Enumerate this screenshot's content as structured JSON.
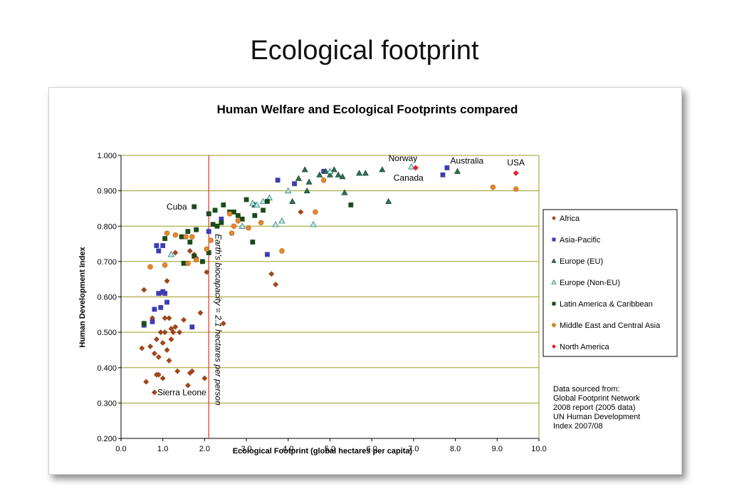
{
  "page": {
    "title": "Ecological footprint"
  },
  "chart_data": {
    "type": "scatter",
    "title": "Human Welfare and Ecological Footprints compared",
    "xlabel": "Ecological Footprint (global hectares per capita)",
    "ylabel": "Human Development Index",
    "xlim": [
      0,
      10
    ],
    "ylim": [
      0.2,
      1.0
    ],
    "xticks": [
      "0.0",
      "1.0",
      "2.0",
      "3.0",
      "4.0",
      "5.0",
      "6.0",
      "7.0",
      "8.0",
      "9.0",
      "10.0"
    ],
    "yticks": [
      "0.200",
      "0.300",
      "0.400",
      "0.500",
      "0.600",
      "0.700",
      "0.800",
      "0.900",
      "1.000"
    ],
    "grid": true,
    "legend_position": "right",
    "reference_line": {
      "x": 2.1,
      "label": "Earth's biocapacity = 2.1 hectares per person",
      "color": "#e8412e"
    },
    "series": [
      {
        "name": "Africa",
        "marker": "diamond",
        "color": "#a0461c",
        "points": [
          [
            0.5,
            0.455
          ],
          [
            0.6,
            0.36
          ],
          [
            0.7,
            0.46
          ],
          [
            0.75,
            0.54
          ],
          [
            0.8,
            0.44
          ],
          [
            0.8,
            0.33
          ],
          [
            0.85,
            0.48
          ],
          [
            0.85,
            0.38
          ],
          [
            0.9,
            0.43
          ],
          [
            0.9,
            0.38
          ],
          [
            0.95,
            0.5
          ],
          [
            1.0,
            0.37
          ],
          [
            1.0,
            0.47
          ],
          [
            1.05,
            0.54
          ],
          [
            1.05,
            0.5
          ],
          [
            1.1,
            0.45
          ],
          [
            1.1,
            0.645
          ],
          [
            1.15,
            0.42
          ],
          [
            1.2,
            0.51
          ],
          [
            1.25,
            0.5
          ],
          [
            1.3,
            0.515
          ],
          [
            1.3,
            0.725
          ],
          [
            1.35,
            0.39
          ],
          [
            1.4,
            0.5
          ],
          [
            1.5,
            0.535
          ],
          [
            1.6,
            0.35
          ],
          [
            1.65,
            0.385
          ],
          [
            1.7,
            0.39
          ],
          [
            1.75,
            0.72
          ],
          [
            1.8,
            0.71
          ],
          [
            1.9,
            0.555
          ],
          [
            2.0,
            0.37
          ],
          [
            2.05,
            0.67
          ],
          [
            2.45,
            0.525
          ],
          [
            0.55,
            0.62
          ],
          [
            0.95,
            0.61
          ],
          [
            1.65,
            0.73
          ],
          [
            3.6,
            0.665
          ],
          [
            3.7,
            0.635
          ],
          [
            4.3,
            0.84
          ],
          [
            1.15,
            0.54
          ],
          [
            1.2,
            0.48
          ]
        ]
      },
      {
        "name": "Asia-Pacific",
        "marker": "square",
        "color": "#3c3cb4",
        "points": [
          [
            0.55,
            0.52
          ],
          [
            0.75,
            0.53
          ],
          [
            0.8,
            0.565
          ],
          [
            0.85,
            0.745
          ],
          [
            0.9,
            0.61
          ],
          [
            0.9,
            0.73
          ],
          [
            0.95,
            0.57
          ],
          [
            1.0,
            0.615
          ],
          [
            1.0,
            0.745
          ],
          [
            1.05,
            0.61
          ],
          [
            1.1,
            0.585
          ],
          [
            1.7,
            0.515
          ],
          [
            2.1,
            0.785
          ],
          [
            2.4,
            0.82
          ],
          [
            3.5,
            0.72
          ],
          [
            3.75,
            0.93
          ],
          [
            4.15,
            0.92
          ],
          [
            4.85,
            0.955
          ],
          [
            7.7,
            0.945
          ],
          [
            7.8,
            0.965
          ]
        ]
      },
      {
        "name": "Europe (EU)",
        "marker": "triangle",
        "color": "#2e6e50",
        "points": [
          [
            3.2,
            0.86
          ],
          [
            4.1,
            0.87
          ],
          [
            4.25,
            0.935
          ],
          [
            4.4,
            0.96
          ],
          [
            4.5,
            0.925
          ],
          [
            4.45,
            0.9
          ],
          [
            4.75,
            0.945
          ],
          [
            4.9,
            0.955
          ],
          [
            5.0,
            0.945
          ],
          [
            5.1,
            0.96
          ],
          [
            5.2,
            0.945
          ],
          [
            5.3,
            0.94
          ],
          [
            5.35,
            0.895
          ],
          [
            5.7,
            0.95
          ],
          [
            5.85,
            0.95
          ],
          [
            6.25,
            0.96
          ],
          [
            6.4,
            0.87
          ],
          [
            8.05,
            0.955
          ]
        ]
      },
      {
        "name": "Europe (Non-EU)",
        "marker": "triangle-open",
        "color": "#4ab8b8",
        "points": [
          [
            1.2,
            0.72
          ],
          [
            2.9,
            0.8
          ],
          [
            3.15,
            0.865
          ],
          [
            3.25,
            0.86
          ],
          [
            3.4,
            0.87
          ],
          [
            3.55,
            0.88
          ],
          [
            3.7,
            0.805
          ],
          [
            3.85,
            0.815
          ],
          [
            4.0,
            0.9
          ],
          [
            4.6,
            0.805
          ],
          [
            5.0,
            0.955
          ],
          [
            6.95,
            0.968
          ]
        ]
      },
      {
        "name": "Latin America & Caribbean",
        "marker": "square",
        "color": "#1a4a1a",
        "points": [
          [
            0.55,
            0.525
          ],
          [
            1.05,
            0.765
          ],
          [
            1.45,
            0.77
          ],
          [
            1.5,
            0.695
          ],
          [
            1.6,
            0.785
          ],
          [
            1.65,
            0.755
          ],
          [
            1.75,
            0.715
          ],
          [
            1.75,
            0.855
          ],
          [
            1.8,
            0.79
          ],
          [
            1.95,
            0.7
          ],
          [
            2.1,
            0.835
          ],
          [
            2.1,
            0.725
          ],
          [
            2.2,
            0.805
          ],
          [
            2.25,
            0.845
          ],
          [
            2.3,
            0.8
          ],
          [
            2.4,
            0.81
          ],
          [
            2.45,
            0.86
          ],
          [
            2.6,
            0.84
          ],
          [
            2.7,
            0.84
          ],
          [
            2.8,
            0.83
          ],
          [
            2.9,
            0.82
          ],
          [
            3.0,
            0.875
          ],
          [
            3.15,
            0.755
          ],
          [
            3.2,
            0.83
          ],
          [
            3.4,
            0.845
          ],
          [
            3.5,
            0.87
          ],
          [
            5.5,
            0.86
          ]
        ]
      },
      {
        "name": "Middle East and Central Asia",
        "marker": "circle",
        "color": "#e8872a",
        "points": [
          [
            0.7,
            0.685
          ],
          [
            1.05,
            0.69
          ],
          [
            1.1,
            0.78
          ],
          [
            1.3,
            0.775
          ],
          [
            1.55,
            0.77
          ],
          [
            1.6,
            0.695
          ],
          [
            1.7,
            0.77
          ],
          [
            1.8,
            0.705
          ],
          [
            2.05,
            0.735
          ],
          [
            2.15,
            0.76
          ],
          [
            2.6,
            0.835
          ],
          [
            2.65,
            0.78
          ],
          [
            2.7,
            0.8
          ],
          [
            2.8,
            0.815
          ],
          [
            3.05,
            0.795
          ],
          [
            3.35,
            0.81
          ],
          [
            3.85,
            0.73
          ],
          [
            4.65,
            0.84
          ],
          [
            4.85,
            0.93
          ],
          [
            8.9,
            0.91
          ],
          [
            9.45,
            0.905
          ]
        ]
      },
      {
        "name": "North America",
        "marker": "diamond",
        "color": "#e8202a",
        "points": [
          [
            7.05,
            0.965
          ],
          [
            9.45,
            0.95
          ]
        ]
      }
    ],
    "annotations": [
      {
        "text": "Norway",
        "x": 6.95,
        "y": 0.968
      },
      {
        "text": "Canada",
        "x": 7.05,
        "y": 0.965
      },
      {
        "text": "Australia",
        "x": 7.8,
        "y": 0.965
      },
      {
        "text": "USA",
        "x": 9.45,
        "y": 0.95
      },
      {
        "text": "Cuba",
        "x": 1.75,
        "y": 0.855
      },
      {
        "text": "Sierra Leone",
        "x": 0.8,
        "y": 0.33
      }
    ],
    "source_note": [
      "Data sourced from:",
      "Global Footprint Network",
      "2008 report (2005 data)",
      "UN Human Development",
      "Index 2007/08"
    ]
  }
}
